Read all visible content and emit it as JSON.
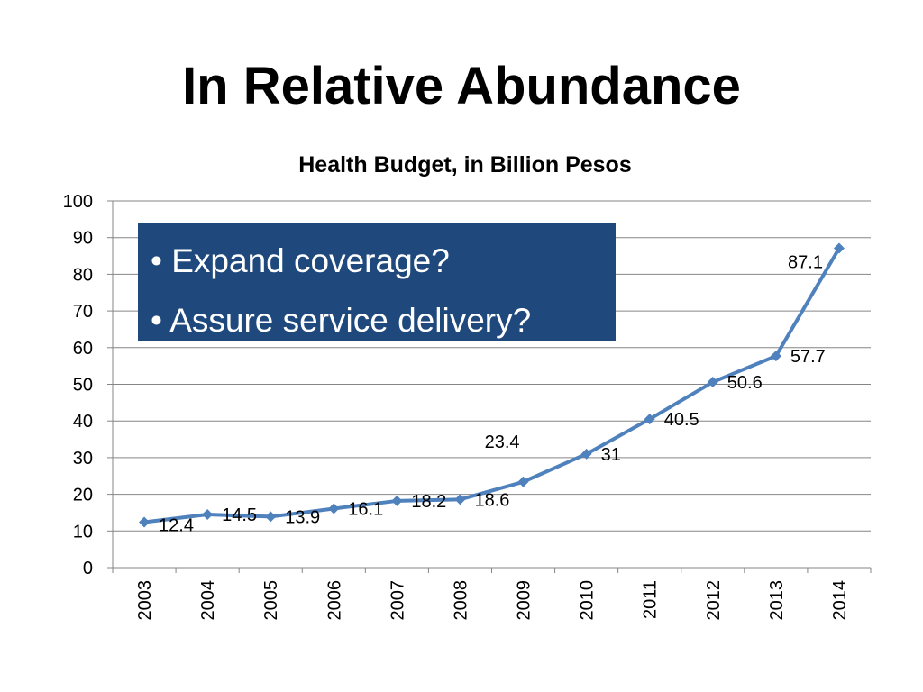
{
  "slide": {
    "title": "In Relative Abundance"
  },
  "callout": {
    "bullets": [
      {
        "marker": "•",
        "text": "Expand coverage?"
      },
      {
        "marker": "•",
        "text": "Assure service delivery?"
      }
    ],
    "background_color": "#1f497d"
  },
  "colors": {
    "series_line": "#4f81bd",
    "gridline": "#868686"
  },
  "chart_data": {
    "type": "line",
    "title": "Health Budget, in Billion Pesos",
    "xlabel": "",
    "ylabel": "",
    "categories": [
      "2003",
      "2004",
      "2005",
      "2006",
      "2007",
      "2008",
      "2009",
      "2010",
      "2011",
      "2012",
      "2013",
      "2014"
    ],
    "series": [
      {
        "values": [
          12.4,
          14.5,
          13.9,
          16.1,
          18.2,
          18.6,
          23.4,
          31,
          40.5,
          50.6,
          57.7,
          87.1
        ],
        "data_labels": [
          "12.4",
          "14.5",
          "13.9",
          "16.1",
          "18.2",
          "18.6",
          "23.4",
          "31",
          "40.5",
          "50.6",
          "57.7",
          "87.1"
        ],
        "marker": "diamond"
      }
    ],
    "ylim": [
      0,
      100
    ],
    "yticks": [
      0,
      10,
      20,
      30,
      40,
      50,
      60,
      70,
      80,
      90,
      100
    ],
    "grid": true,
    "legend": "none"
  }
}
